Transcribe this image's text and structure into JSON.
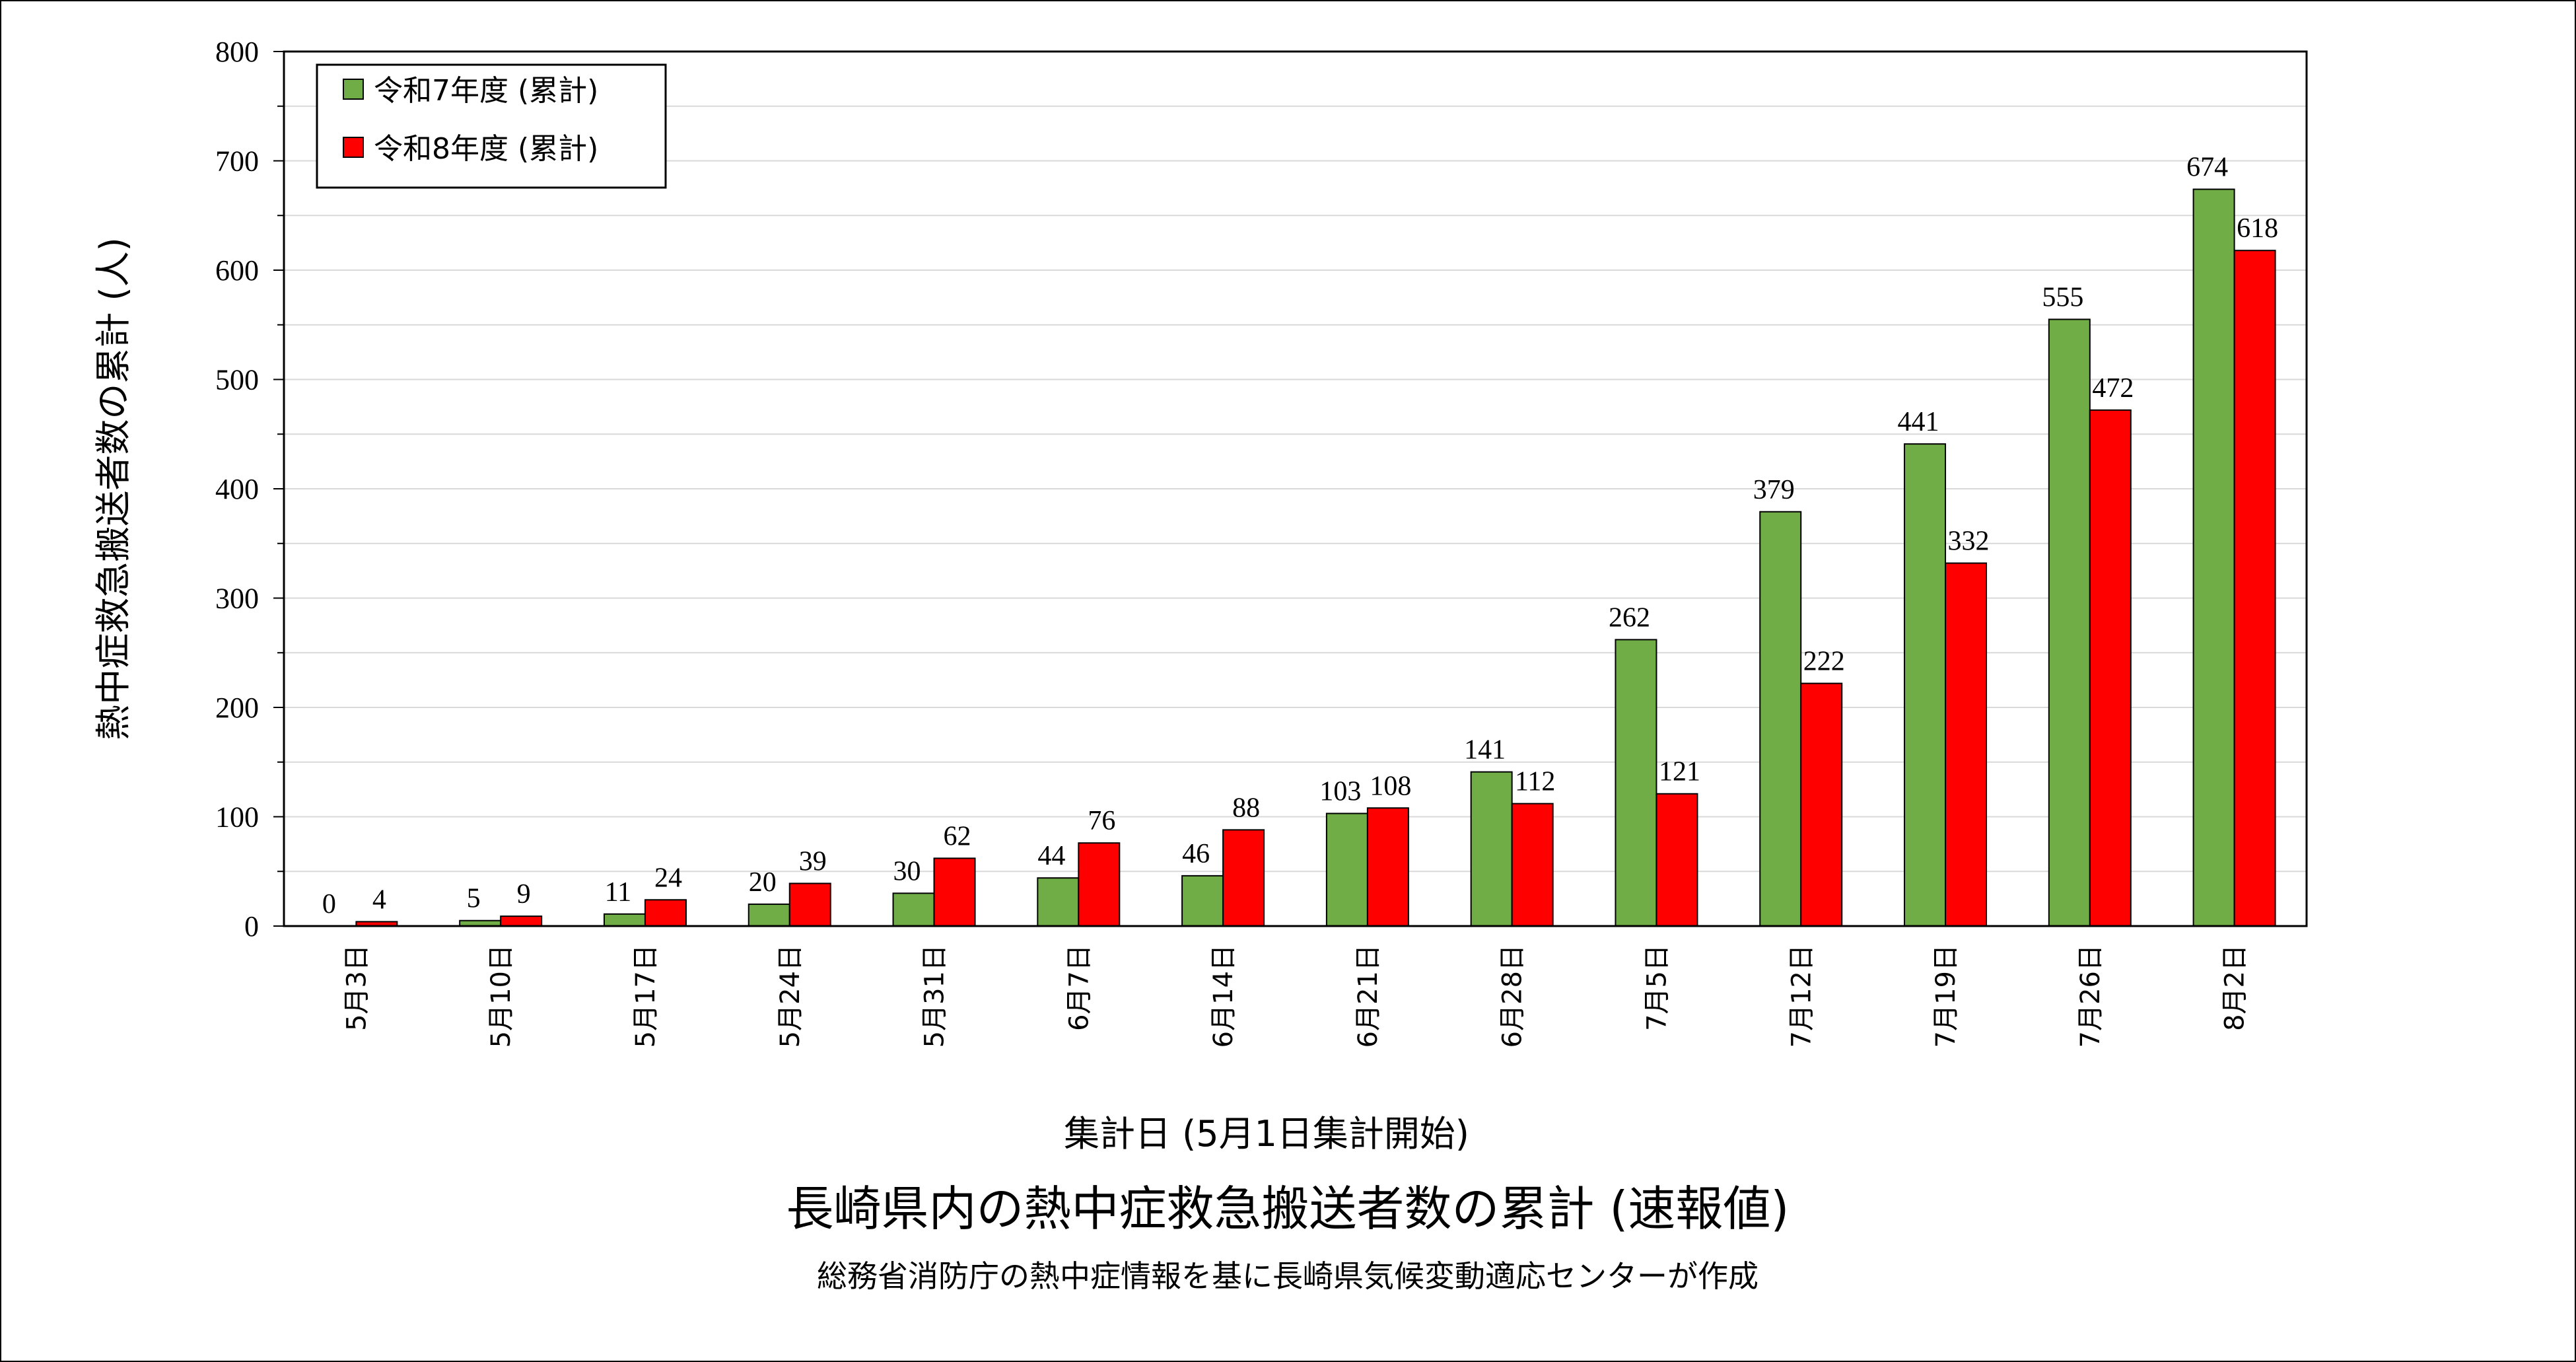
{
  "chart_data": {
    "type": "bar",
    "title": "長崎県内の熱中症救急搬送者数の累計 (速報値)",
    "subtitle": "総務省消防庁の熱中症情報を基に長崎県気候変動適応センターが作成",
    "xlabel": "集計日 (5月1日集計開始)",
    "ylabel": "熱中症救急搬送者数の累計 (人)",
    "ylim": [
      0,
      800
    ],
    "yticks": [
      0,
      100,
      200,
      300,
      400,
      500,
      600,
      700,
      800
    ],
    "grid": true,
    "legend_position": "top-left",
    "categories": [
      "5月3日",
      "5月10日",
      "5月17日",
      "5月24日",
      "5月31日",
      "6月7日",
      "6月14日",
      "6月21日",
      "6月28日",
      "7月5日",
      "7月12日",
      "7月19日",
      "7月26日",
      "8月2日"
    ],
    "series": [
      {
        "name": "令和7年度 (累計)",
        "color": "#70AD47",
        "values": [
          0,
          5,
          11,
          20,
          30,
          44,
          46,
          103,
          141,
          262,
          379,
          441,
          555,
          674
        ]
      },
      {
        "name": "令和8年度 (累計)",
        "color": "#FF0000",
        "values": [
          4,
          9,
          24,
          39,
          62,
          76,
          88,
          108,
          112,
          121,
          222,
          332,
          472,
          618
        ]
      }
    ]
  }
}
